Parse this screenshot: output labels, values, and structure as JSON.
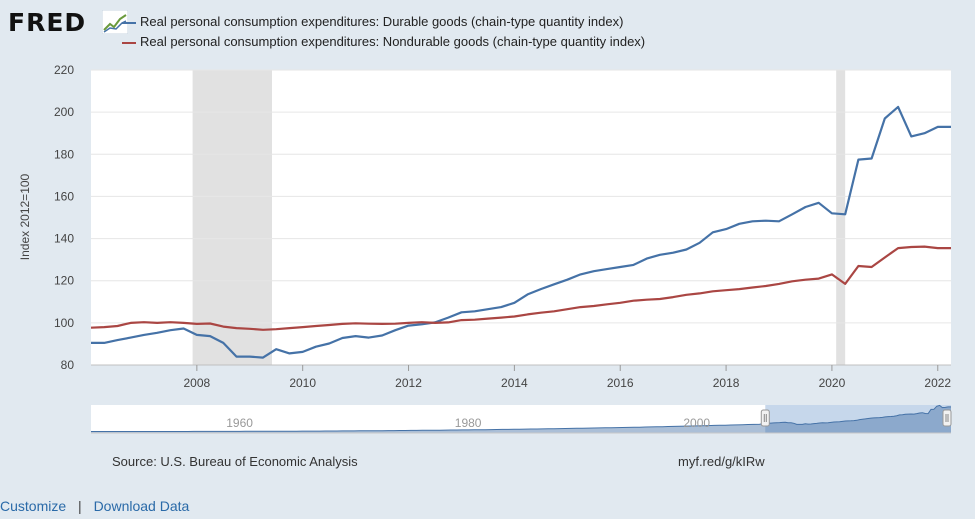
{
  "header": {
    "logo_text": "FRED",
    "logo_mark_icon": "chart-trend-icon"
  },
  "chart_data": {
    "type": "line",
    "title": "",
    "ylabel": "Index 2012=100",
    "xlabel": "",
    "ylim": [
      80,
      220
    ],
    "yticks": [
      80,
      100,
      120,
      140,
      160,
      180,
      200,
      220
    ],
    "xlim": [
      2006.0,
      2022.25
    ],
    "xticks": [
      "2008",
      "2010",
      "2012",
      "2014",
      "2016",
      "2018",
      "2020",
      "2022"
    ],
    "recessions": [
      [
        2007.92,
        2009.42
      ],
      [
        2020.08,
        2020.25
      ]
    ],
    "series": [
      {
        "name": "Real personal consumption expenditures: Durable goods (chain-type quantity index)",
        "color": "#4572a7",
        "x": [
          2006.0,
          2006.25,
          2006.5,
          2006.75,
          2007.0,
          2007.25,
          2007.5,
          2007.75,
          2008.0,
          2008.25,
          2008.5,
          2008.75,
          2009.0,
          2009.25,
          2009.5,
          2009.75,
          2010.0,
          2010.25,
          2010.5,
          2010.75,
          2011.0,
          2011.25,
          2011.5,
          2011.75,
          2012.0,
          2012.25,
          2012.5,
          2012.75,
          2013.0,
          2013.25,
          2013.5,
          2013.75,
          2014.0,
          2014.25,
          2014.5,
          2014.75,
          2015.0,
          2015.25,
          2015.5,
          2015.75,
          2016.0,
          2016.25,
          2016.5,
          2016.75,
          2017.0,
          2017.25,
          2017.5,
          2017.75,
          2018.0,
          2018.25,
          2018.5,
          2018.75,
          2019.0,
          2019.25,
          2019.5,
          2019.75,
          2020.0,
          2020.25,
          2020.5,
          2020.75,
          2021.0,
          2021.25,
          2021.5,
          2021.75,
          2022.0,
          2022.25
        ],
        "values": [
          90.5,
          90.5,
          91.8,
          93.0,
          94.3,
          95.3,
          96.5,
          97.3,
          94.3,
          93.7,
          90.5,
          84.0,
          84.0,
          83.5,
          87.5,
          85.5,
          86.2,
          88.7,
          90.2,
          92.8,
          93.7,
          93.0,
          94.0,
          96.5,
          98.7,
          99.3,
          100.2,
          102.5,
          105.0,
          105.5,
          106.5,
          107.5,
          109.5,
          113.5,
          116.0,
          118.3,
          120.5,
          123.0,
          124.5,
          125.5,
          126.5,
          127.5,
          130.5,
          132.3,
          133.3,
          134.8,
          138.0,
          143.0,
          144.5,
          147.0,
          148.2,
          148.5,
          148.2,
          151.5,
          155.0,
          157.0,
          152.0,
          151.5,
          177.5,
          178.0,
          197.0,
          202.5,
          188.5,
          190.0,
          193.0,
          193.0
        ]
      },
      {
        "name": "Real personal consumption expenditures: Nondurable goods (chain-type quantity index)",
        "color": "#aa4643",
        "x": [
          2006.0,
          2006.25,
          2006.5,
          2006.75,
          2007.0,
          2007.25,
          2007.5,
          2007.75,
          2008.0,
          2008.25,
          2008.5,
          2008.75,
          2009.0,
          2009.25,
          2009.5,
          2009.75,
          2010.0,
          2010.25,
          2010.5,
          2010.75,
          2011.0,
          2011.25,
          2011.5,
          2011.75,
          2012.0,
          2012.25,
          2012.5,
          2012.75,
          2013.0,
          2013.25,
          2013.5,
          2013.75,
          2014.0,
          2014.25,
          2014.5,
          2014.75,
          2015.0,
          2015.25,
          2015.5,
          2015.75,
          2016.0,
          2016.25,
          2016.5,
          2016.75,
          2017.0,
          2017.25,
          2017.5,
          2017.75,
          2018.0,
          2018.25,
          2018.5,
          2018.75,
          2019.0,
          2019.25,
          2019.5,
          2019.75,
          2020.0,
          2020.25,
          2020.5,
          2020.75,
          2021.0,
          2021.25,
          2021.5,
          2021.75,
          2022.0,
          2022.25
        ],
        "values": [
          97.7,
          98.0,
          98.5,
          100.0,
          100.3,
          100.0,
          100.3,
          100.0,
          99.5,
          99.7,
          98.2,
          97.5,
          97.2,
          96.7,
          97.0,
          97.5,
          98.0,
          98.5,
          99.0,
          99.5,
          99.8,
          99.6,
          99.5,
          99.6,
          100.0,
          100.3,
          100.0,
          100.2,
          101.3,
          101.5,
          102.0,
          102.5,
          103.0,
          104.0,
          104.8,
          105.5,
          106.5,
          107.5,
          108.0,
          108.8,
          109.5,
          110.5,
          111.0,
          111.3,
          112.2,
          113.3,
          114.0,
          115.0,
          115.5,
          116.0,
          116.8,
          117.5,
          118.5,
          119.7,
          120.5,
          121.0,
          123.0,
          118.5,
          127.0,
          126.5,
          131.0,
          135.5,
          136.0,
          136.2,
          135.5,
          135.5
        ]
      }
    ],
    "navigator": {
      "labels": [
        "1960",
        "1980",
        "2000"
      ],
      "range_start_year": 1947,
      "range_end_year": 2022.25,
      "selected_from": 2006.0,
      "selected_to": 2022.25
    }
  },
  "footer": {
    "source": "Source: U.S. Bureau of Economic Analysis",
    "shortlink": "myf.red/g/kIRw",
    "customize": "Customize",
    "separator": "|",
    "download": "Download Data"
  }
}
